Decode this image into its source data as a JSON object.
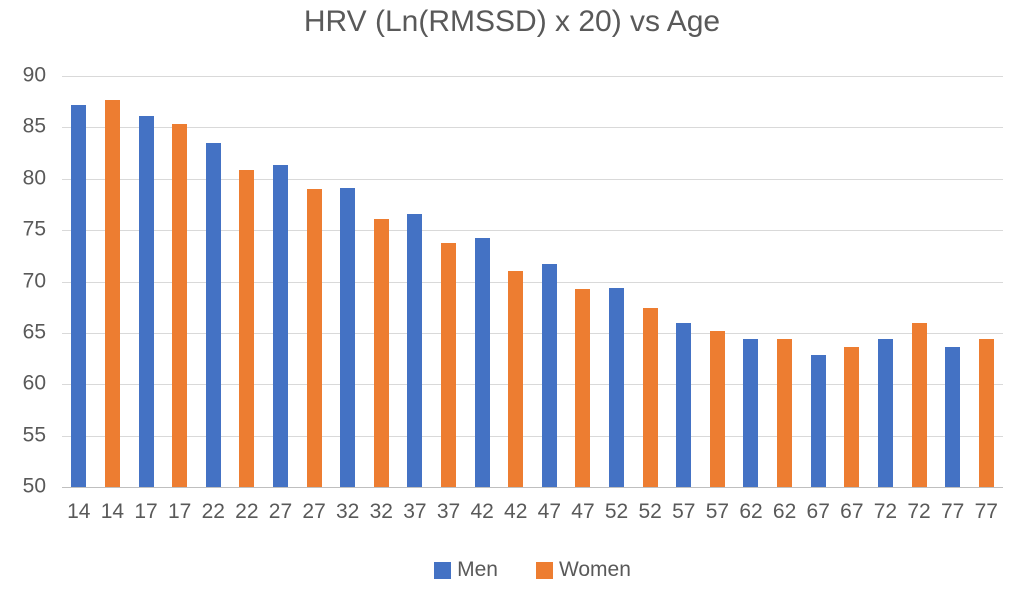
{
  "chart_data": {
    "type": "bar",
    "title": "HRV (Ln(RMSSD) x 20) vs Age",
    "categories": [
      "14",
      "17",
      "22",
      "27",
      "32",
      "37",
      "42",
      "47",
      "52",
      "57",
      "62",
      "67",
      "72",
      "77"
    ],
    "series": [
      {
        "name": "Men",
        "color": "#4472C4",
        "values": [
          87.2,
          86.1,
          83.5,
          81.3,
          79.1,
          76.6,
          74.2,
          71.7,
          69.4,
          66.0,
          64.4,
          62.8,
          64.4,
          63.6
        ]
      },
      {
        "name": "Women",
        "color": "#ED7D31",
        "values": [
          87.7,
          85.3,
          80.9,
          79.0,
          76.1,
          73.7,
          71.0,
          69.3,
          67.4,
          65.2,
          64.4,
          63.6,
          66.0,
          64.4
        ]
      }
    ],
    "xlabel": "",
    "ylabel": "",
    "ylim": [
      50,
      90
    ],
    "yticks": [
      90,
      85,
      80,
      75,
      70,
      65,
      60,
      55,
      50
    ],
    "grid": true,
    "legend_position": "bottom",
    "bar_arrangement": "paired-alternating",
    "x_tick_labels_per_bar": true
  },
  "colors": {
    "title_text": "#595959",
    "axis_text": "#595959",
    "gridline": "#D9D9D9",
    "axis_line": "#BFBFBF",
    "background": "#FFFFFF"
  }
}
